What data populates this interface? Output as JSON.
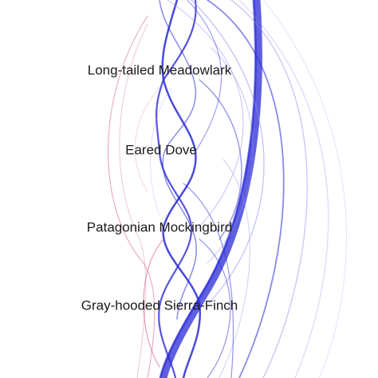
{
  "nodes": [
    {
      "id": "meadowlark",
      "label": "Long-tailed Meadowlark"
    },
    {
      "id": "dove",
      "label": "Eared Dove"
    },
    {
      "id": "mockingbird",
      "label": "Patagonian Mockingbird"
    },
    {
      "id": "sierra_finch",
      "label": "Gray-hooded Sierra-Finch"
    }
  ],
  "colors": {
    "blue": "#2a2ad6",
    "light_blue": "#8f8ff0",
    "pink": "#d43b6e",
    "background": "#ffffff"
  }
}
